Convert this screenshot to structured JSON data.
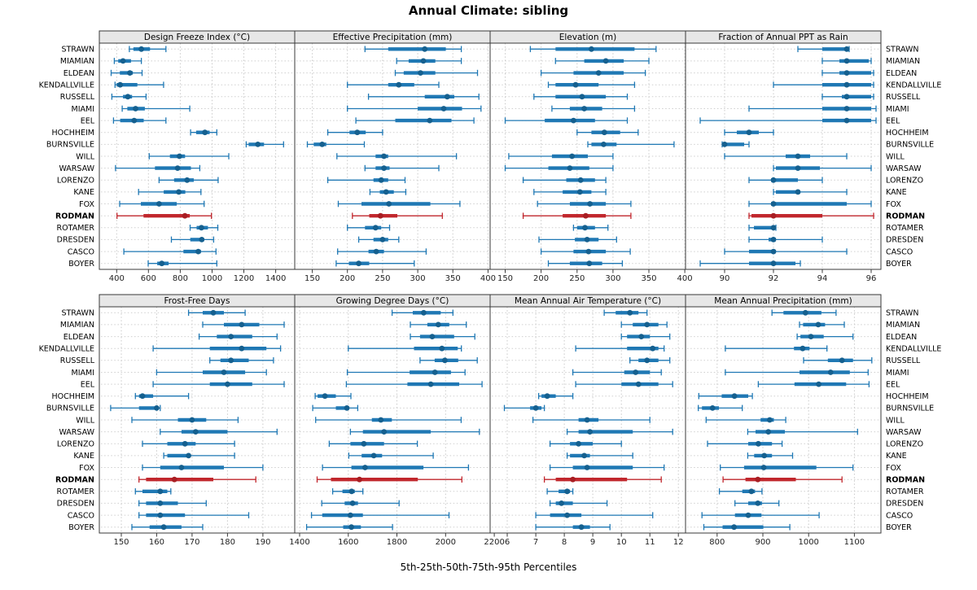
{
  "title": "Annual Climate: sibling",
  "caption": "5th-25th-50th-75th-95th Percentiles",
  "highlight_station": "RODMAN",
  "colors": {
    "series": "#1F78B4",
    "series_dot": "#15608F",
    "highlight": "#C1272D",
    "highlight_dot": "#A81E23",
    "header_bg": "#E7E7E7",
    "grid": "#C9C9C9",
    "row_guide": "#CFCFCF",
    "border": "#3A3A3A",
    "tick_text": "#222222"
  },
  "stations": [
    "STRAWN",
    "MIAMIAN",
    "ELDEAN",
    "KENDALLVILLE",
    "RUSSELL",
    "MIAMI",
    "EEL",
    "HOCHHEIM",
    "BURNSVILLE",
    "WILL",
    "WARSAW",
    "LORENZO",
    "KANE",
    "FOX",
    "RODMAN",
    "ROTAMER",
    "DRESDEN",
    "CASCO",
    "BOYER"
  ],
  "chart_data": {
    "type": "dotplot-percentiles",
    "percentile_labels": [
      "5th",
      "25th",
      "50th",
      "75th",
      "95th"
    ],
    "layout": {
      "rows": 2,
      "cols": 4
    },
    "panels": [
      {
        "title": "Design Freeze Index (°C)",
        "xlim": [
          291,
          1520
        ],
        "ticks": [
          400,
          600,
          800,
          1000,
          1200,
          1400
        ],
        "values": [
          [
            480,
            505,
            555,
            610,
            710
          ],
          [
            385,
            410,
            440,
            490,
            555
          ],
          [
            365,
            420,
            483,
            502,
            560
          ],
          [
            390,
            400,
            422,
            530,
            695
          ],
          [
            370,
            440,
            470,
            497,
            585
          ],
          [
            435,
            467,
            519,
            577,
            860
          ],
          [
            380,
            422,
            510,
            570,
            710
          ],
          [
            865,
            900,
            955,
            985,
            1030
          ],
          [
            1215,
            1230,
            1288,
            1327,
            1450
          ],
          [
            605,
            735,
            795,
            830,
            1105
          ],
          [
            393,
            641,
            783,
            867,
            923
          ],
          [
            667,
            761,
            843,
            885,
            1038
          ],
          [
            538,
            696,
            791,
            832,
            930
          ],
          [
            419,
            552,
            667,
            778,
            950
          ],
          [
            402,
            569,
            829,
            860,
            996
          ],
          [
            862,
            903,
            933,
            974,
            1036
          ],
          [
            744,
            863,
            935,
            950,
            1010
          ],
          [
            445,
            820,
            913,
            930,
            1025
          ],
          [
            598,
            655,
            684,
            727,
            1030
          ]
        ]
      },
      {
        "title": "Effective Precipitation (mm)",
        "xlim": [
          125,
          403
        ],
        "ticks": [
          150,
          200,
          250,
          300,
          350,
          400
        ],
        "values": [
          [
            225,
            258,
            310,
            340,
            362
          ],
          [
            270,
            287,
            308,
            325,
            362
          ],
          [
            268,
            280,
            304,
            325,
            385
          ],
          [
            200,
            258,
            273,
            295,
            330
          ],
          [
            230,
            310,
            342,
            352,
            387
          ],
          [
            200,
            300,
            337,
            363,
            390
          ],
          [
            212,
            268,
            317,
            348,
            380
          ],
          [
            172,
            203,
            214,
            226,
            250
          ],
          [
            143,
            152,
            164,
            170,
            224
          ],
          [
            185,
            240,
            252,
            258,
            355
          ],
          [
            225,
            240,
            252,
            260,
            330
          ],
          [
            172,
            237,
            248,
            258,
            282
          ],
          [
            232,
            246,
            255,
            266,
            283
          ],
          [
            187,
            220,
            259,
            318,
            360
          ],
          [
            207,
            231,
            247,
            271,
            335
          ],
          [
            200,
            225,
            240,
            248,
            260
          ],
          [
            216,
            237,
            250,
            258,
            273
          ],
          [
            186,
            230,
            241,
            252,
            312
          ],
          [
            184,
            202,
            216,
            231,
            295
          ]
        ]
      },
      {
        "title": "Elevation (m)",
        "xlim": [
          129,
          401
        ],
        "ticks": [
          150,
          200,
          250,
          300,
          350,
          400
        ],
        "values": [
          [
            185,
            220,
            270,
            330,
            360
          ],
          [
            220,
            260,
            290,
            315,
            350
          ],
          [
            200,
            245,
            280,
            315,
            345
          ],
          [
            210,
            220,
            248,
            280,
            330
          ],
          [
            190,
            220,
            257,
            290,
            320
          ],
          [
            215,
            240,
            260,
            285,
            330
          ],
          [
            150,
            205,
            245,
            275,
            320
          ],
          [
            250,
            270,
            288,
            310,
            335
          ],
          [
            265,
            270,
            287,
            305,
            385
          ],
          [
            155,
            215,
            243,
            265,
            300
          ],
          [
            150,
            210,
            240,
            267,
            300
          ],
          [
            175,
            235,
            255,
            275,
            290
          ],
          [
            190,
            230,
            254,
            270,
            290
          ],
          [
            195,
            240,
            268,
            290,
            325
          ],
          [
            175,
            230,
            262,
            290,
            325
          ],
          [
            245,
            250,
            261,
            275,
            293
          ],
          [
            197,
            247,
            264,
            280,
            305
          ],
          [
            200,
            245,
            266,
            290,
            324
          ],
          [
            210,
            240,
            267,
            285,
            313
          ]
        ]
      },
      {
        "title": "Fraction of Annual PPT as Rain",
        "xlim": [
          88.4,
          96.4
        ],
        "ticks": [
          90,
          92,
          94,
          96
        ],
        "values": [
          [
            93.0,
            94.0,
            95.0,
            95.0,
            95.1
          ],
          [
            94.0,
            94.7,
            95.0,
            95.9,
            96.0
          ],
          [
            94.0,
            94.7,
            95.0,
            96.0,
            96.1
          ],
          [
            92.0,
            94.0,
            95.0,
            96.0,
            96.1
          ],
          [
            94.0,
            94.8,
            95.0,
            96.0,
            96.1
          ],
          [
            91.0,
            94.0,
            95.0,
            96.0,
            96.2
          ],
          [
            89.0,
            94.0,
            95.0,
            96.0,
            96.2
          ],
          [
            90.0,
            90.5,
            91.0,
            91.4,
            92.0
          ],
          [
            89.9,
            90.0,
            90.0,
            90.8,
            91.0
          ],
          [
            90.0,
            92.5,
            93.0,
            93.5,
            95.0
          ],
          [
            92.0,
            92.1,
            93.0,
            93.9,
            96.0
          ],
          [
            91.0,
            91.9,
            92.0,
            93.0,
            94.0
          ],
          [
            92.0,
            92.1,
            93.0,
            93.1,
            95.0
          ],
          [
            91.0,
            91.9,
            92.0,
            95.0,
            96.0
          ],
          [
            91.0,
            91.1,
            92.0,
            94.0,
            96.1
          ],
          [
            91.0,
            91.2,
            92.0,
            92.0,
            92.1
          ],
          [
            91.0,
            91.8,
            92.0,
            92.1,
            94.0
          ],
          [
            90.0,
            91.0,
            92.0,
            92.1,
            95.0
          ],
          [
            89.0,
            91.0,
            92.0,
            92.9,
            93.1
          ]
        ]
      },
      {
        "title": "Frost-Free Days",
        "xlim": [
          143.8,
          199
        ],
        "ticks": [
          150,
          160,
          170,
          180,
          190
        ],
        "values": [
          [
            169,
            173,
            176,
            179,
            185
          ],
          [
            173,
            179,
            184,
            189,
            196
          ],
          [
            172,
            177,
            181,
            187,
            194
          ],
          [
            159,
            175,
            184,
            191,
            195
          ],
          [
            175,
            178,
            181,
            186,
            193
          ],
          [
            160,
            173,
            179,
            185,
            191
          ],
          [
            159,
            175,
            180,
            187,
            196
          ],
          [
            154,
            155,
            156,
            159,
            169
          ],
          [
            147,
            155,
            160,
            160.5,
            161
          ],
          [
            153,
            166,
            170,
            174,
            183
          ],
          [
            161,
            167,
            171,
            180,
            194
          ],
          [
            156,
            163,
            168,
            171,
            182
          ],
          [
            162,
            163,
            169,
            169.5,
            182
          ],
          [
            156,
            161,
            167,
            179,
            190
          ],
          [
            155,
            157,
            165,
            176,
            188
          ],
          [
            154,
            156,
            161,
            163,
            164
          ],
          [
            155,
            157,
            161,
            166,
            174
          ],
          [
            155,
            157,
            161,
            168,
            186
          ],
          [
            153,
            158,
            162,
            167,
            173
          ]
        ]
      },
      {
        "title": "Growing Degree Days (°C)",
        "xlim": [
          1380,
          2183
        ],
        "ticks": [
          1400,
          1600,
          1800,
          2000,
          2200
        ],
        "values": [
          [
            1780,
            1865,
            1910,
            1980,
            2030
          ],
          [
            1855,
            1925,
            1970,
            2015,
            2085
          ],
          [
            1855,
            1895,
            1945,
            2035,
            2120
          ],
          [
            1600,
            1870,
            1985,
            2050,
            2065
          ],
          [
            1895,
            1955,
            1997,
            2052,
            2130
          ],
          [
            1596,
            1852,
            1956,
            2022,
            2080
          ],
          [
            1592,
            1843,
            1939,
            2056,
            2150
          ],
          [
            1464,
            1474,
            1504,
            1549,
            1611
          ],
          [
            1454,
            1549,
            1594,
            1604,
            1639
          ],
          [
            1466,
            1697,
            1734,
            1779,
            2064
          ],
          [
            1609,
            1660,
            1747,
            1939,
            2139
          ],
          [
            1522,
            1609,
            1664,
            1747,
            1884
          ],
          [
            1602,
            1655,
            1705,
            1739,
            1949
          ],
          [
            1494,
            1613,
            1669,
            1909,
            2094
          ],
          [
            1472,
            1529,
            1646,
            1886,
            2067
          ],
          [
            1536,
            1576,
            1614,
            1627,
            1660
          ],
          [
            1491,
            1585,
            1618,
            1640,
            1809
          ],
          [
            1449,
            1493,
            1609,
            1660,
            2014
          ],
          [
            1429,
            1579,
            1613,
            1652,
            1782
          ]
        ]
      },
      {
        "title": "Mean Annual Air Temperature (°C)",
        "xlim": [
          5.4,
          12.25
        ],
        "ticks": [
          6,
          7,
          8,
          9,
          10,
          11,
          12
        ],
        "values": [
          [
            9.4,
            9.8,
            10.3,
            10.6,
            10.9
          ],
          [
            10.0,
            10.4,
            10.9,
            11.3,
            11.6
          ],
          [
            10.0,
            10.2,
            10.7,
            11.0,
            11.7
          ],
          [
            8.4,
            10.2,
            11.1,
            11.3,
            11.5
          ],
          [
            10.3,
            10.6,
            10.9,
            11.3,
            11.7
          ],
          [
            8.3,
            10.1,
            10.5,
            11.0,
            11.4
          ],
          [
            8.4,
            10.0,
            10.6,
            11.3,
            11.8
          ],
          [
            7.1,
            7.2,
            7.4,
            7.7,
            8.3
          ],
          [
            5.9,
            6.8,
            7.0,
            7.2,
            7.3
          ],
          [
            6.9,
            8.5,
            8.8,
            9.2,
            11.0
          ],
          [
            8.1,
            8.5,
            8.9,
            10.4,
            11.8
          ],
          [
            7.5,
            8.2,
            8.5,
            9.0,
            10.0
          ],
          [
            8.1,
            8.2,
            8.7,
            8.9,
            10.4
          ],
          [
            7.5,
            8.3,
            8.8,
            10.4,
            11.5
          ],
          [
            7.3,
            7.7,
            8.3,
            10.2,
            11.4
          ],
          [
            7.4,
            7.8,
            8.1,
            8.2,
            8.3
          ],
          [
            7.5,
            7.7,
            7.9,
            8.3,
            9.5
          ],
          [
            7.0,
            7.5,
            8.1,
            8.6,
            11.1
          ],
          [
            7.0,
            8.3,
            8.6,
            8.9,
            9.6
          ]
        ]
      },
      {
        "title": "Mean Annual Precipitation (mm)",
        "xlim": [
          731,
          1158
        ],
        "ticks": [
          800,
          900,
          1000,
          1100
        ],
        "values": [
          [
            920,
            945,
            993,
            1028,
            1060
          ],
          [
            980,
            988,
            1021,
            1036,
            1078
          ],
          [
            975,
            982,
            1005,
            1033,
            1097
          ],
          [
            818,
            968,
            987,
            1002,
            1040
          ],
          [
            989,
            1042,
            1073,
            1097,
            1138
          ],
          [
            818,
            980,
            1048,
            1090,
            1130
          ],
          [
            890,
            969,
            1022,
            1082,
            1132
          ],
          [
            760,
            810,
            838,
            868,
            877
          ],
          [
            759,
            767,
            790,
            804,
            855
          ],
          [
            776,
            895,
            915,
            924,
            950
          ],
          [
            867,
            884,
            912,
            948,
            1107
          ],
          [
            779,
            868,
            890,
            920,
            942
          ],
          [
            867,
            881,
            903,
            920,
            965
          ],
          [
            807,
            859,
            902,
            1017,
            1097
          ],
          [
            813,
            862,
            889,
            972,
            1073
          ],
          [
            805,
            855,
            875,
            883,
            898
          ],
          [
            839,
            868,
            889,
            898,
            935
          ],
          [
            767,
            839,
            868,
            897,
            1023
          ],
          [
            771,
            812,
            837,
            901,
            959
          ]
        ]
      }
    ]
  }
}
